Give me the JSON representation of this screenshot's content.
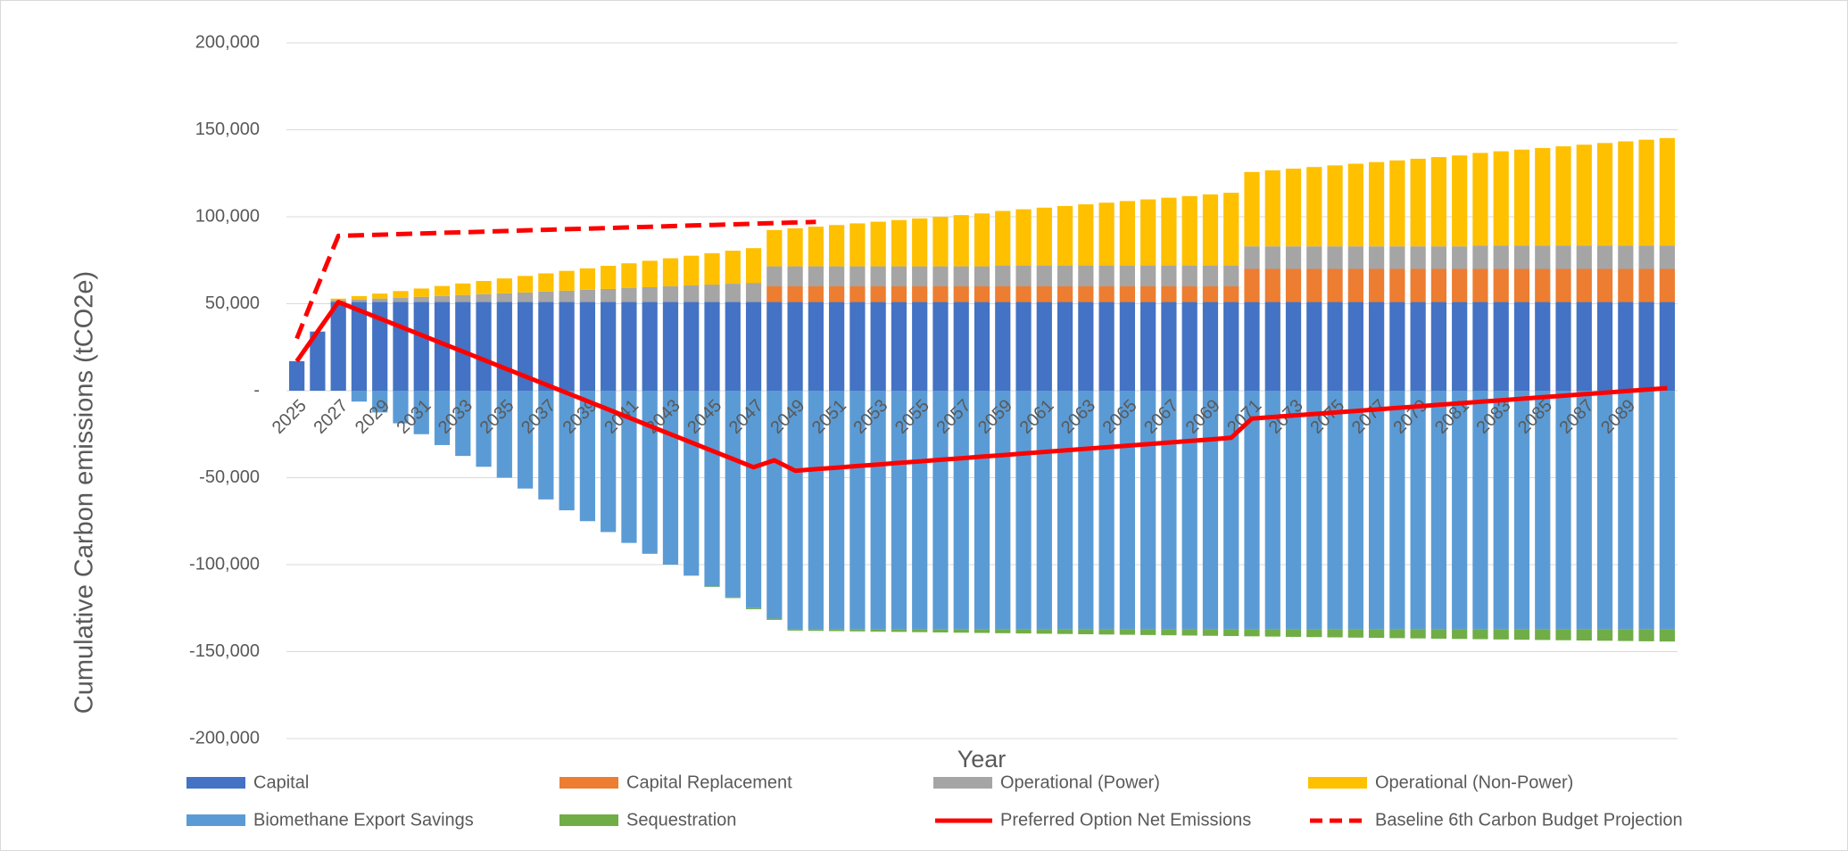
{
  "chart_data": {
    "type": "bar",
    "stacked": true,
    "xlabel": "Year",
    "ylabel": "Cumulative Carbon emissions (tCO2e)",
    "categories": [
      "2025",
      null,
      "2027",
      null,
      "2029",
      null,
      "2031",
      null,
      "2033",
      null,
      "2035",
      null,
      "2037",
      null,
      "2039",
      null,
      "2041",
      null,
      "2043",
      null,
      "2045",
      null,
      "2047",
      null,
      "2049",
      null,
      "2051",
      null,
      "2053",
      null,
      "2055",
      null,
      "2057",
      null,
      "2059",
      null,
      "2061",
      null,
      "2063",
      null,
      "2065",
      null,
      "2067",
      null,
      "2069",
      null,
      "2071",
      null,
      "2073",
      null,
      "2075",
      null,
      "2077",
      null,
      "2079",
      null,
      "2081",
      null,
      "2083",
      null,
      "2085",
      null,
      "2087",
      null,
      "2089",
      null,
      null
    ],
    "ylim": [
      -200000,
      200000
    ],
    "yticks": [
      {
        "value": -200000,
        "label": "-200,000"
      },
      {
        "value": -150000,
        "label": "-150,000"
      },
      {
        "value": -100000,
        "label": "-100,000"
      },
      {
        "value": -50000,
        "label": "-50,000"
      },
      {
        "value": 0,
        "label": "-"
      },
      {
        "value": 50000,
        "label": "50,000"
      },
      {
        "value": 100000,
        "label": "100,000"
      },
      {
        "value": 150000,
        "label": "150,000"
      },
      {
        "value": 200000,
        "label": "200,000"
      }
    ],
    "grid": true,
    "legend": "bottom",
    "series": [
      {
        "name": "Capital",
        "type": "bar",
        "color": "#4472c4",
        "values": [
          17000,
          34000,
          51000,
          51000,
          51000,
          51000,
          51000,
          51000,
          51000,
          51000,
          51000,
          51000,
          51000,
          51000,
          51000,
          51000,
          51000,
          51000,
          51000,
          51000,
          51000,
          51000,
          51000,
          51000,
          51000,
          51000,
          51000,
          51000,
          51000,
          51000,
          51000,
          51000,
          51000,
          51000,
          51000,
          51000,
          51000,
          51000,
          51000,
          51000,
          51000,
          51000,
          51000,
          51000,
          51000,
          51000,
          51000,
          51000,
          51000,
          51000,
          51000,
          51000,
          51000,
          51000,
          51000,
          51000,
          51000,
          51000,
          51000,
          51000,
          51000,
          51000,
          51000,
          51000,
          51000,
          51000,
          51000
        ]
      },
      {
        "name": "Capital Replacement",
        "type": "bar",
        "color": "#ed7d31",
        "values": [
          0,
          0,
          0,
          0,
          0,
          0,
          0,
          0,
          0,
          0,
          0,
          0,
          0,
          0,
          0,
          0,
          0,
          0,
          0,
          0,
          0,
          0,
          0,
          9000,
          9000,
          9000,
          9000,
          9000,
          9000,
          9000,
          9000,
          9000,
          9000,
          9000,
          9000,
          9000,
          9000,
          9000,
          9000,
          9000,
          9000,
          9000,
          9000,
          9000,
          9000,
          9000,
          19000,
          19000,
          19000,
          19000,
          19000,
          19000,
          19000,
          19000,
          19000,
          19000,
          19000,
          19000,
          19000,
          19000,
          19000,
          19000,
          19000,
          19000,
          19000,
          19000,
          19000
        ]
      },
      {
        "name": "Operational (Power)",
        "type": "bar",
        "color": "#a5a5a5",
        "values": [
          0,
          0,
          1000,
          1500,
          2000,
          2500,
          3000,
          3500,
          4000,
          4500,
          5000,
          5500,
          6000,
          6500,
          7000,
          7500,
          8000,
          8500,
          9000,
          9500,
          10000,
          10500,
          11000,
          11500,
          11500,
          11500,
          11500,
          11500,
          11500,
          11500,
          11500,
          11500,
          11500,
          11500,
          12000,
          12000,
          12000,
          12000,
          12000,
          12000,
          12000,
          12000,
          12000,
          12000,
          12000,
          12000,
          13000,
          13000,
          13000,
          13000,
          13000,
          13000,
          13000,
          13000,
          13000,
          13000,
          13000,
          13500,
          13500,
          13500,
          13500,
          13500,
          13500,
          13500,
          13500,
          13500,
          13500
        ]
      },
      {
        "name": "Operational (Non-Power)",
        "type": "bar",
        "color": "#ffc000",
        "values": [
          0,
          0,
          950,
          1900,
          2850,
          3800,
          4750,
          5700,
          6650,
          7600,
          8550,
          9500,
          10450,
          11400,
          12350,
          13300,
          14250,
          15200,
          16150,
          17100,
          18050,
          19000,
          19950,
          20900,
          21850,
          22800,
          23750,
          24700,
          25650,
          26600,
          27550,
          28500,
          29450,
          30400,
          31350,
          32300,
          33250,
          34200,
          35150,
          36100,
          37050,
          38000,
          38950,
          39900,
          40850,
          41800,
          42750,
          43700,
          44650,
          45600,
          46550,
          47500,
          48450,
          49400,
          50350,
          51300,
          52250,
          53200,
          54150,
          55100,
          56050,
          57000,
          57950,
          58900,
          59850,
          60800,
          61750
        ]
      },
      {
        "name": "Biomethane Export Savings",
        "type": "bar",
        "color": "#5b9bd5",
        "values": [
          0,
          0,
          0,
          -6250,
          -12500,
          -18750,
          -25000,
          -31250,
          -37500,
          -43750,
          -50000,
          -56250,
          -62500,
          -68750,
          -75000,
          -81250,
          -87500,
          -93750,
          -100000,
          -106250,
          -112500,
          -118750,
          -125000,
          -131000,
          -137000,
          -137000,
          -137000,
          -137000,
          -137000,
          -137000,
          -137000,
          -137000,
          -137000,
          -137000,
          -137000,
          -137000,
          -137000,
          -137000,
          -137000,
          -137000,
          -137000,
          -137000,
          -137000,
          -137000,
          -137000,
          -137000,
          -137000,
          -137000,
          -137000,
          -137000,
          -137000,
          -137000,
          -137000,
          -137000,
          -137000,
          -137000,
          -137000,
          -137000,
          -137000,
          -137000,
          -137000,
          -137000,
          -137000,
          -137000,
          -137000,
          -137000,
          -137000
        ]
      },
      {
        "name": "Sequestration",
        "type": "bar",
        "color": "#70ad47",
        "values": [
          0,
          0,
          0,
          0,
          0,
          0,
          0,
          0,
          0,
          0,
          0,
          0,
          0,
          0,
          0,
          0,
          0,
          0,
          0,
          -150,
          -300,
          -450,
          -600,
          -750,
          -900,
          -1050,
          -1200,
          -1350,
          -1500,
          -1650,
          -1800,
          -1950,
          -2100,
          -2250,
          -2400,
          -2550,
          -2700,
          -2850,
          -3000,
          -3150,
          -3300,
          -3450,
          -3600,
          -3750,
          -3900,
          -4050,
          -4200,
          -4350,
          -4500,
          -4650,
          -4800,
          -4950,
          -5100,
          -5250,
          -5400,
          -5550,
          -5700,
          -5850,
          -6000,
          -6150,
          -6300,
          -6450,
          -6600,
          -6750,
          -6900,
          -7050,
          -7200
        ]
      },
      {
        "name": "Preferred Option Net Emissions",
        "type": "line",
        "color": "#ff0000",
        "dash": false,
        "values": [
          17000,
          34000,
          51000,
          46250,
          41500,
          36750,
          32000,
          27250,
          22500,
          17750,
          13000,
          8250,
          3500,
          -1250,
          -6000,
          -10750,
          -15500,
          -20250,
          -25000,
          -29750,
          -34500,
          -39250,
          -44000,
          -40000,
          -46000,
          -45100,
          -44200,
          -43300,
          -42400,
          -41500,
          -40600,
          -39700,
          -38800,
          -37900,
          -37000,
          -36100,
          -35200,
          -34300,
          -33400,
          -32500,
          -31600,
          -30700,
          -29800,
          -28900,
          -28000,
          -27100,
          -16000,
          -15125,
          -14250,
          -13375,
          -12500,
          -11625,
          -10750,
          -9875,
          -9000,
          -8125,
          -7250,
          -6375,
          -5500,
          -4625,
          -3750,
          -2875,
          -2000,
          -1125,
          -250,
          625,
          1500
        ]
      },
      {
        "name": "Baseline 6th Carbon Budget Projection",
        "type": "line",
        "color": "#ff0000",
        "dash": true,
        "values": [
          30000,
          60000,
          89000,
          89350,
          89700,
          90050,
          90400,
          90750,
          91100,
          91450,
          91800,
          92150,
          92500,
          92850,
          93200,
          93550,
          93900,
          94250,
          94600,
          94950,
          95300,
          95650,
          96000,
          96350,
          96700,
          97050,
          null,
          null,
          null,
          null,
          null,
          null,
          null,
          null,
          null,
          null,
          null,
          null,
          null,
          null,
          null,
          null,
          null,
          null,
          null,
          null,
          null,
          null,
          null,
          null,
          null,
          null,
          null,
          null,
          null,
          null,
          null,
          null,
          null,
          null,
          null,
          null,
          null,
          null,
          null,
          null,
          null
        ]
      }
    ]
  }
}
